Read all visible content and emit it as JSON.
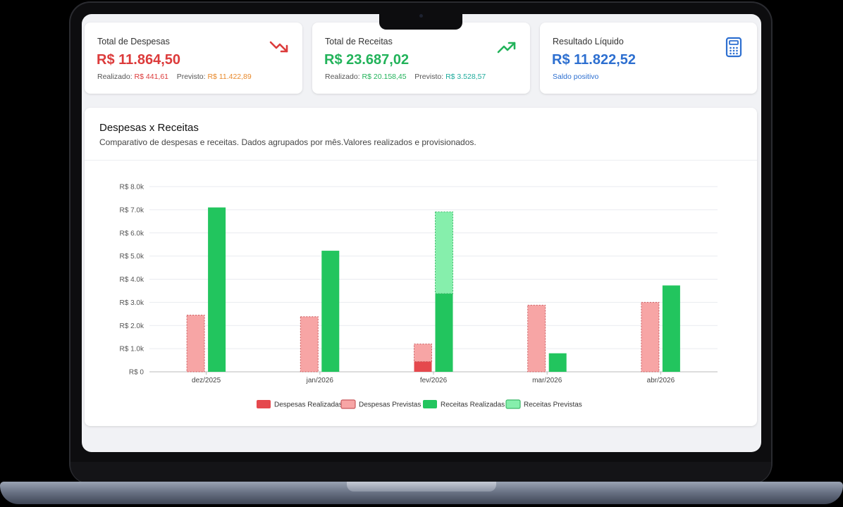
{
  "kpis": {
    "despesas": {
      "title": "Total de Despesas",
      "value": "R$ 11.864,50",
      "realizado_label": "Realizado:",
      "realizado_value": "R$ 441,61",
      "previsto_label": "Previsto:",
      "previsto_value": "R$ 11.422,89",
      "icon": "trending-down-icon",
      "color": "#dc3b3b"
    },
    "receitas": {
      "title": "Total de Receitas",
      "value": "R$ 23.687,02",
      "realizado_label": "Realizado:",
      "realizado_value": "R$ 20.158,45",
      "previsto_label": "Previsto:",
      "previsto_value": "R$ 3.528,57",
      "icon": "trending-up-icon",
      "color": "#22b35a"
    },
    "resultado": {
      "title": "Resultado Líquido",
      "value": "R$ 11.822,52",
      "note": "Saldo positivo",
      "icon": "calculator-icon",
      "color": "#2d6fd0"
    }
  },
  "chart": {
    "title": "Despesas x Receitas",
    "subtitle": "Comparativo de despesas e receitas. Dados agrupados por mês.Valores realizados e provisionados."
  },
  "chart_data": {
    "type": "bar",
    "categories": [
      "dez/2025",
      "jan/2026",
      "fev/2026",
      "mar/2026",
      "abr/2026"
    ],
    "ylim": [
      0,
      8000
    ],
    "yticks": [
      0,
      1000,
      2000,
      3000,
      4000,
      5000,
      6000,
      7000,
      8000
    ],
    "ytick_labels": [
      "R$ 0",
      "R$ 1.0k",
      "R$ 2.0k",
      "R$ 3.0k",
      "R$ 4.0k",
      "R$ 5.0k",
      "R$ 6.0k",
      "R$ 7.0k",
      "R$ 8.0k"
    ],
    "grid": true,
    "legend_position": "bottom",
    "series": [
      {
        "name": "Despesas Realizadas",
        "stack": "despesas",
        "color": "#e5484d",
        "values": [
          0,
          0,
          440,
          0,
          0
        ]
      },
      {
        "name": "Despesas Previstas",
        "stack": "despesas",
        "color": "#f7a5a5",
        "values": [
          2450,
          2380,
          760,
          2880,
          3000
        ]
      },
      {
        "name": "Receitas Realizadas",
        "stack": "receitas",
        "color": "#22c55e",
        "values": [
          7100,
          5230,
          3380,
          800,
          3730
        ]
      },
      {
        "name": "Receitas Previstas",
        "stack": "receitas",
        "color": "#86efac",
        "values": [
          0,
          0,
          3530,
          0,
          0
        ]
      }
    ]
  }
}
